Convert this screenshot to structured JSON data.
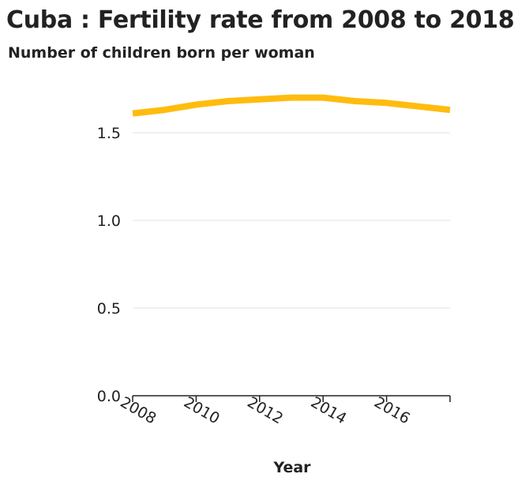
{
  "chart_data": {
    "type": "line",
    "title": "Cuba : Fertility rate from 2008 to 2018",
    "ylabel": "Number of children born per woman",
    "xlabel": "Year",
    "x": [
      2008,
      2009,
      2010,
      2011,
      2012,
      2013,
      2014,
      2015,
      2016,
      2017,
      2018
    ],
    "series": [
      {
        "values": [
          1.61,
          1.63,
          1.66,
          1.68,
          1.69,
          1.7,
          1.7,
          1.68,
          1.67,
          1.65,
          1.63
        ]
      }
    ],
    "xlim": [
      2008,
      2018
    ],
    "ylim": [
      0,
      1.8
    ],
    "yticks": [
      "0.0",
      "0.5",
      "1.0",
      "1.5"
    ],
    "xticks": [
      "2008",
      "2010",
      "2012",
      "2014",
      "2016"
    ],
    "grid": "horizontal",
    "line_color": "#FFBC0F",
    "grid_color": "#E0E0E0"
  }
}
